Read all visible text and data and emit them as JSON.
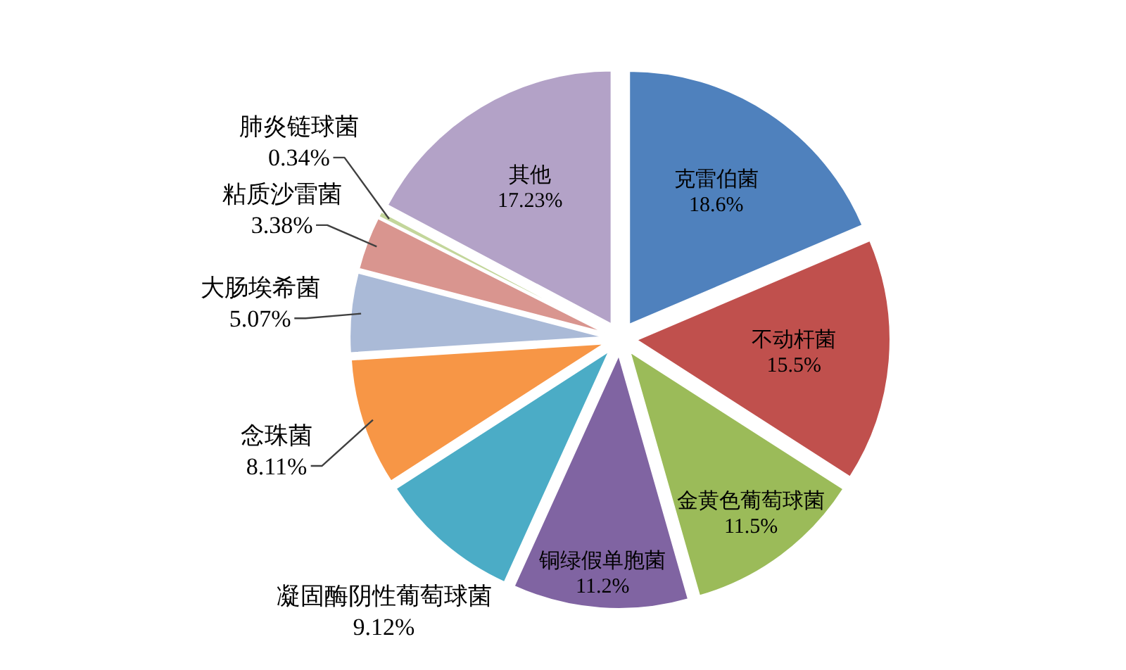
{
  "chart_data": {
    "type": "pie",
    "categories": [
      "克雷伯菌",
      "不动杆菌",
      "金黄色葡萄球菌",
      "铜绿假单胞菌",
      "凝固酶阴性葡萄球菌",
      "念珠菌",
      "大肠埃希菌",
      "粘质沙雷菌",
      "肺炎链球菌",
      "其他"
    ],
    "values": [
      18.6,
      15.5,
      11.5,
      11.2,
      9.12,
      8.11,
      5.07,
      3.38,
      0.34,
      17.23
    ],
    "value_labels": [
      "18.6%",
      "15.5%",
      "11.5%",
      "11.2%",
      "9.12%",
      "8.11%",
      "5.07%",
      "3.38%",
      "0.34%",
      "17.23%"
    ],
    "colors": [
      "#4f81bd",
      "#c0504d",
      "#9bbb59",
      "#8064a2",
      "#4bacc6",
      "#f79646",
      "#aabad7",
      "#d9958f",
      "#c3d69b",
      "#b3a2c7"
    ]
  }
}
